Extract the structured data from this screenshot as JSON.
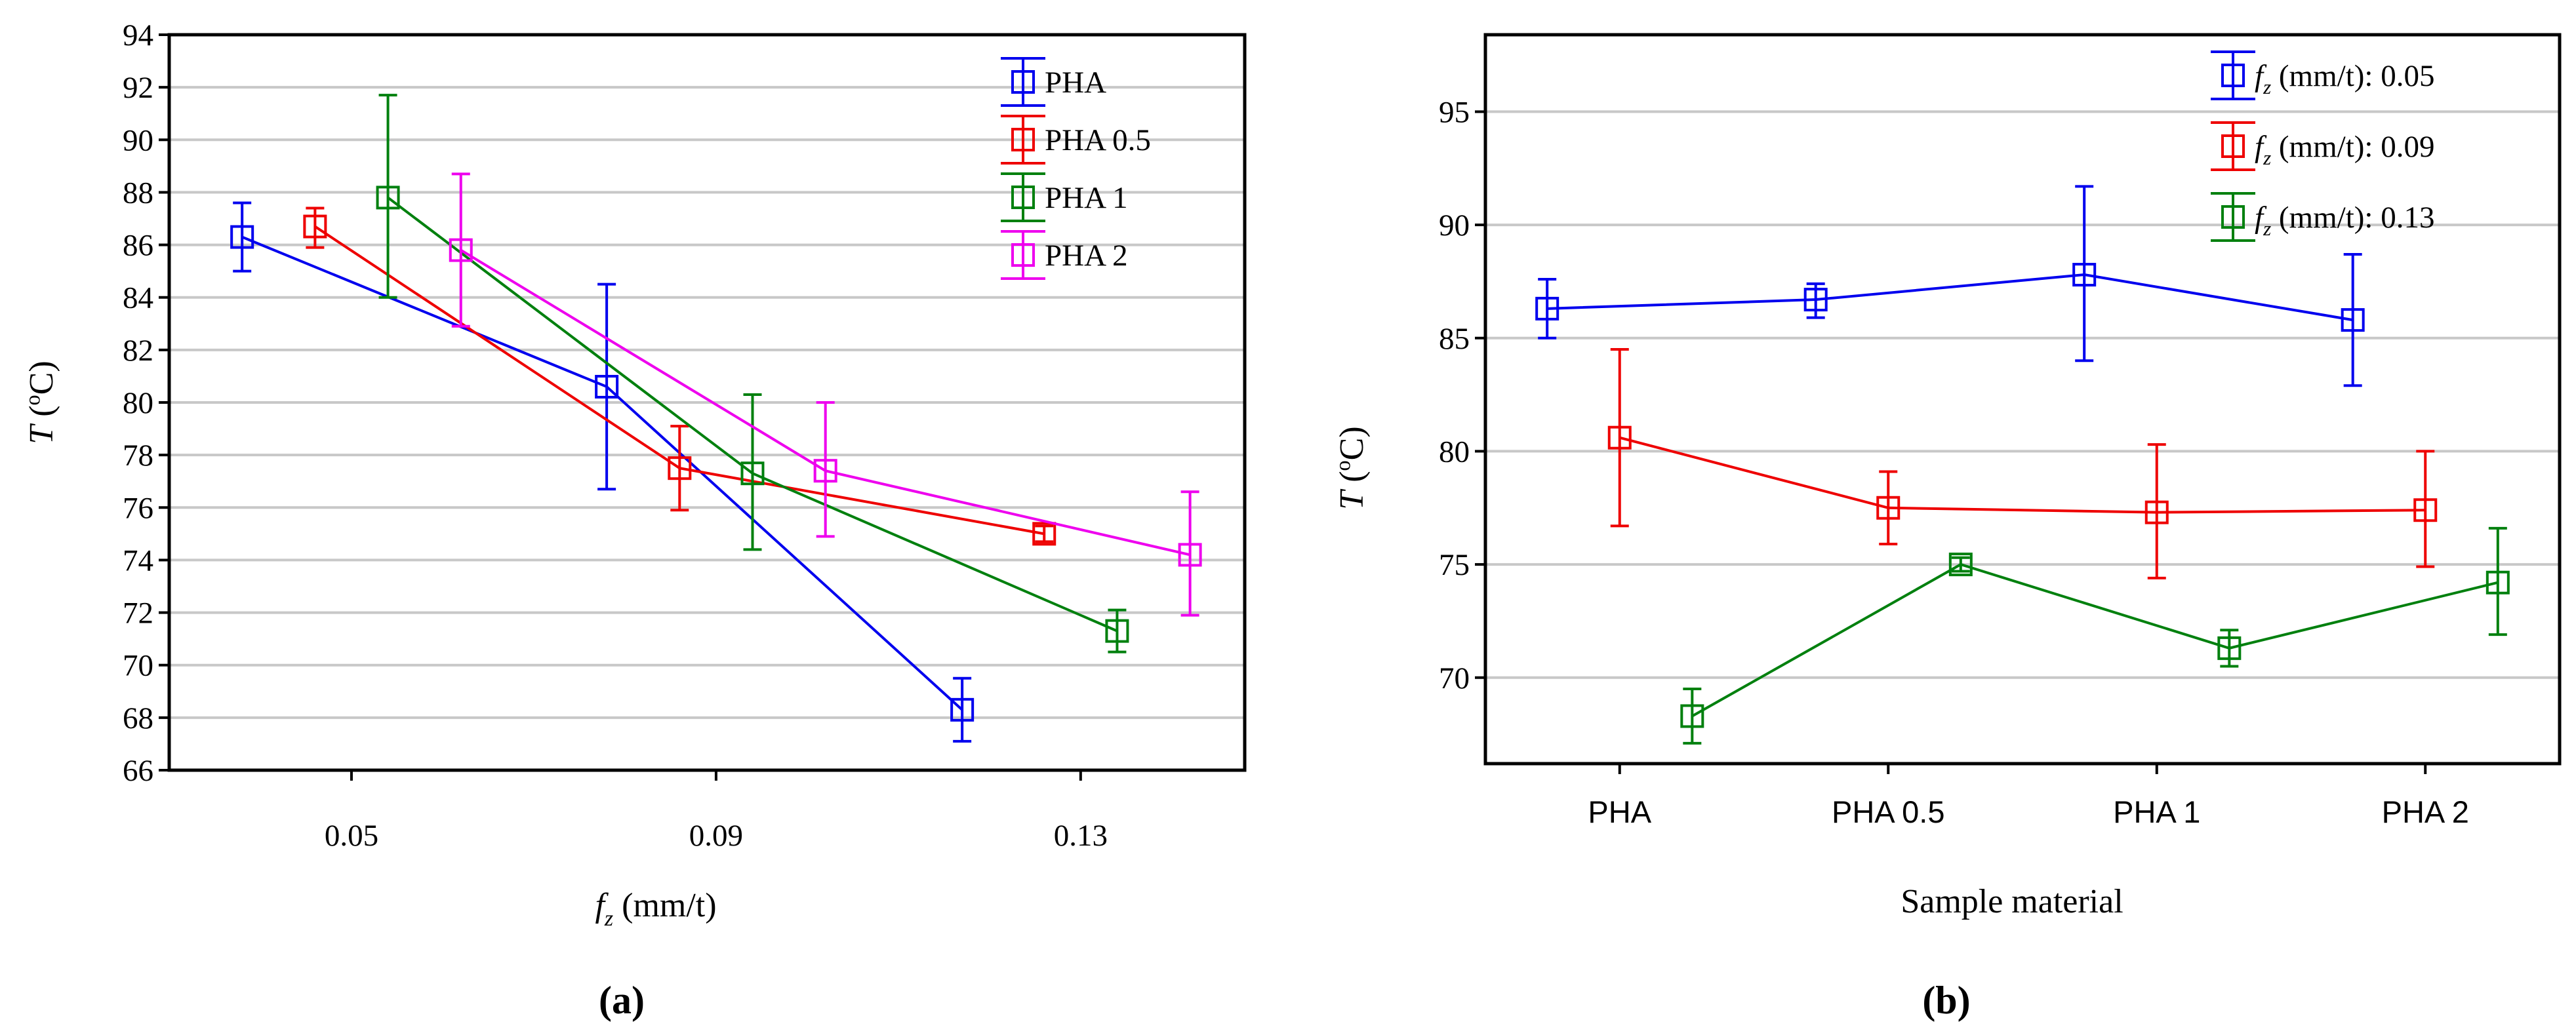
{
  "chart_data": [
    {
      "type": "line",
      "panel_label": "(a)",
      "title": "",
      "xlabel": {
        "base": "f",
        "sub": "z",
        "unit": " (mm/t)"
      },
      "ylabel": {
        "base": "T",
        "sup": "o",
        "unit": "C"
      },
      "xlim": [
        0.03,
        0.148
      ],
      "ylim": [
        66,
        94
      ],
      "xticks": [
        0.05,
        0.09,
        0.13
      ],
      "xtick_labels": [
        "0.05",
        "0.09",
        "0.13"
      ],
      "yticks": [
        66,
        68,
        70,
        72,
        74,
        76,
        78,
        80,
        82,
        84,
        86,
        88,
        90,
        92,
        94
      ],
      "ytick_labels": [
        "66",
        "68",
        "70",
        "72",
        "74",
        "76",
        "78",
        "80",
        "82",
        "84",
        "86",
        "88",
        "90",
        "92",
        "94"
      ],
      "grid": true,
      "legend_position": "top-right",
      "series": [
        {
          "name": "PHA",
          "color": "#0000ee",
          "x": [
            0.038,
            0.078,
            0.117
          ],
          "y": [
            86.3,
            80.6,
            68.3
          ],
          "lo": [
            85.0,
            76.7,
            67.1
          ],
          "hi": [
            87.6,
            84.5,
            69.5
          ]
        },
        {
          "name": "PHA 0.5",
          "color": "#ee0000",
          "x": [
            0.046,
            0.086,
            0.126
          ],
          "y": [
            86.7,
            77.5,
            75.0
          ],
          "lo": [
            85.9,
            75.9,
            74.7
          ],
          "hi": [
            87.4,
            79.1,
            75.3
          ]
        },
        {
          "name": "PHA 1",
          "color": "#00800e",
          "x": [
            0.054,
            0.094,
            0.134
          ],
          "y": [
            87.8,
            77.3,
            71.3
          ],
          "lo": [
            84.0,
            74.4,
            70.5
          ],
          "hi": [
            91.7,
            80.3,
            72.1
          ]
        },
        {
          "name": "PHA 2",
          "color": "#ee00ee",
          "x": [
            0.062,
            0.102,
            0.142
          ],
          "y": [
            85.8,
            77.4,
            74.2
          ],
          "lo": [
            82.9,
            74.9,
            71.9
          ],
          "hi": [
            88.7,
            80.0,
            76.6
          ]
        }
      ]
    },
    {
      "type": "line",
      "panel_label": "(b)",
      "title": "",
      "xlabel": "Sample material",
      "ylabel": {
        "base": "T",
        "sup": "o",
        "unit": "C"
      },
      "categories": [
        "PHA",
        "PHA 0.5",
        "PHA 1",
        "PHA 2"
      ],
      "ylim": [
        66.2,
        98.4
      ],
      "yticks": [
        70,
        75,
        80,
        85,
        90,
        95
      ],
      "ytick_labels": [
        "70",
        "75",
        "80",
        "85",
        "90",
        "95"
      ],
      "grid": true,
      "legend_position": "top-right",
      "series": [
        {
          "name": "f_z (mm/t): 0.05",
          "legend": {
            "base": "f",
            "sub": "z",
            "rest": " (mm/t): 0.05"
          },
          "color": "#0000ee",
          "x_offset": -0.27,
          "y": [
            86.3,
            86.7,
            87.8,
            85.8
          ],
          "lo": [
            85.0,
            85.9,
            84.0,
            82.9
          ],
          "hi": [
            87.6,
            87.4,
            91.7,
            88.7
          ]
        },
        {
          "name": "f_z (mm/t): 0.09",
          "legend": {
            "base": "f",
            "sub": "z",
            "rest": " (mm/t): 0.09"
          },
          "color": "#ee0000",
          "x_offset": 0.0,
          "y": [
            80.6,
            77.5,
            77.3,
            77.4
          ],
          "lo": [
            76.7,
            75.9,
            74.4,
            74.9
          ],
          "hi": [
            84.5,
            79.1,
            80.3,
            80.0
          ]
        },
        {
          "name": "f_z (mm/t): 0.13",
          "legend": {
            "base": "f",
            "sub": "z",
            "rest": " (mm/t): 0.13"
          },
          "color": "#00800e",
          "x_offset": 0.27,
          "y": [
            68.3,
            75.0,
            71.3,
            74.2
          ],
          "lo": [
            67.1,
            74.7,
            70.5,
            71.9
          ],
          "hi": [
            69.5,
            75.3,
            72.1,
            76.6
          ]
        }
      ]
    }
  ]
}
